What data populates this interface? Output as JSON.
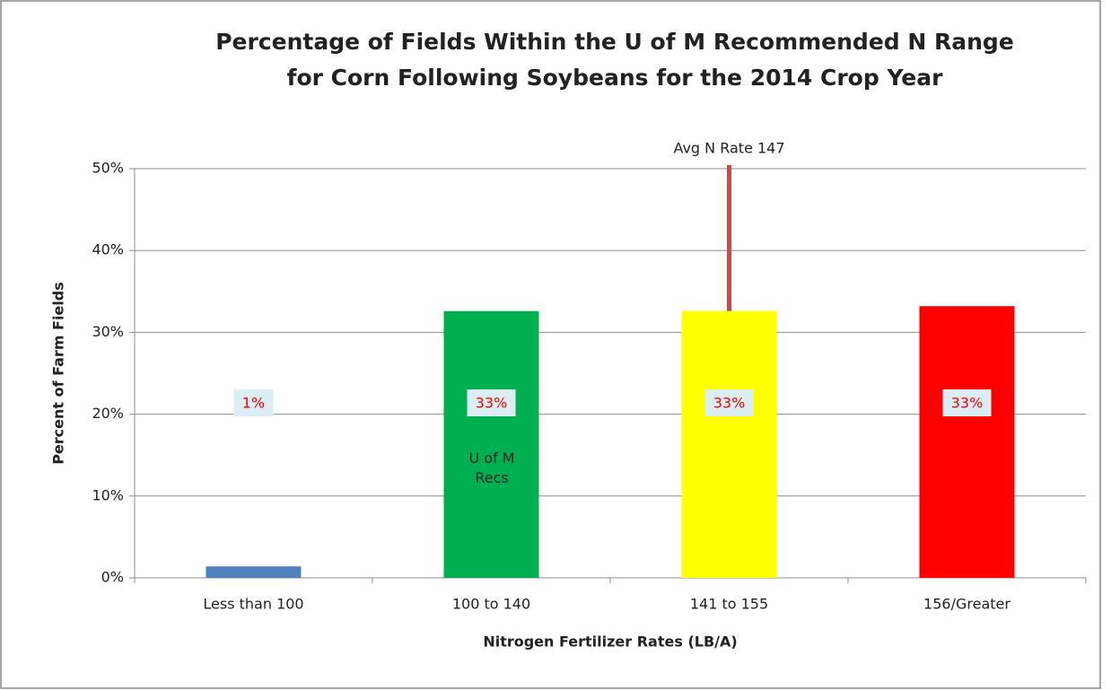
{
  "chart_data": {
    "type": "bar",
    "title": [
      "Percentage of Fields Within the U of M Recommended N Range",
      "for Corn Following Soybeans for the 2014 Crop Year"
    ],
    "x_label": "Nitrogen Fertilizer Rates (LB/A)",
    "y_label": "Percent of Farm Fields",
    "categories": [
      "Less than 100",
      "100 to 140",
      "141 to 155",
      "156/Greater"
    ],
    "values": [
      1.4,
      32.6,
      32.6,
      33.2
    ],
    "value_labels": [
      "1%",
      "33%",
      "33%",
      "33%"
    ],
    "colors": [
      "#4f81bd",
      "#00b050",
      "#ffff00",
      "#ff0000"
    ],
    "ylim": [
      0,
      50
    ],
    "yticks": [
      {
        "value": 0,
        "label": "0%"
      },
      {
        "value": 10,
        "label": "10%"
      },
      {
        "value": 20,
        "label": "20%"
      },
      {
        "value": 30,
        "label": "30%"
      },
      {
        "value": 40,
        "label": "40%"
      },
      {
        "value": 50,
        "label": "50%"
      }
    ],
    "grid": true,
    "annotations": [
      {
        "text": "Avg N Rate 147",
        "line_color": "#c0504d"
      },
      {
        "text": "U of M Recs"
      }
    ]
  }
}
